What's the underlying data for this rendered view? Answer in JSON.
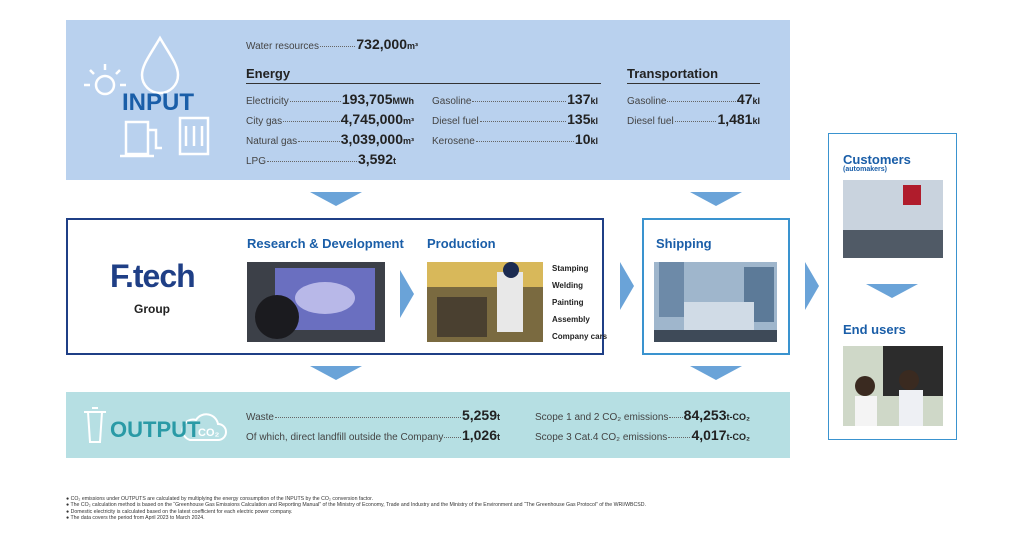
{
  "input": {
    "title": "INPUT",
    "water": {
      "label": "Water resources",
      "value": "732,000",
      "unit": "m³"
    },
    "energy": {
      "heading": "Energy",
      "items": [
        {
          "label": "Electricity",
          "value": "193,705",
          "unit": "MWh"
        },
        {
          "label": "City gas",
          "value": "4,745,000",
          "unit": "m³"
        },
        {
          "label": "Natural gas",
          "value": "3,039,000",
          "unit": "m³"
        },
        {
          "label": "LPG",
          "value": "3,592",
          "unit": "t"
        },
        {
          "label": "Gasoline",
          "value": "137",
          "unit": "kl"
        },
        {
          "label": "Diesel fuel",
          "value": "135",
          "unit": "kl"
        },
        {
          "label": "Kerosene",
          "value": "10",
          "unit": "kl"
        }
      ]
    },
    "transportation": {
      "heading": "Transportation",
      "items": [
        {
          "label": "Gasoline",
          "value": "47",
          "unit": "kl"
        },
        {
          "label": "Diesel fuel",
          "value": "1,481",
          "unit": "kl"
        }
      ]
    }
  },
  "flow": {
    "logo": "F.tech",
    "group": "Group",
    "rd": {
      "heading": "Research & Development"
    },
    "production": {
      "heading": "Production",
      "steps": [
        "Stamping",
        "Welding",
        "Painting",
        "Assembly",
        "Company cars"
      ]
    },
    "shipping": {
      "heading": "Shipping"
    }
  },
  "customers": {
    "heading": "Customers",
    "subheading": "(automakers)"
  },
  "end_users": {
    "heading": "End users"
  },
  "output": {
    "title": "OUTPUT",
    "cloud_label": "CO₂",
    "items": [
      {
        "label": "Waste",
        "value": "5,259",
        "unit": "t"
      },
      {
        "label": "Of which, direct landfill outside the Company",
        "value": "1,026",
        "unit": "t"
      },
      {
        "label": "Scope 1 and 2 CO₂ emissions",
        "value": "84,253",
        "unit": "t-CO₂"
      },
      {
        "label": "Scope 3 Cat.4 CO₂ emissions",
        "value": "4,017",
        "unit": "t-CO₂"
      }
    ]
  },
  "notes": [
    "CO₂ emissions under OUTPUTS are calculated by multiplying the energy consumption of the INPUTS by the CO₂ conversion factor.",
    "The CO₂ calculation method is based on the “Greenhouse Gas Emissions Calculation and Reporting Manual” of the Ministry of Economy, Trade and Industry and the Ministry of the Environment and “The Greenhouse Gas Protocol” of the WRI/WBCSD.",
    "Domestic electricity is calculated based on the latest coefficient for each electric power company.",
    "The data covers the period from April 2023 to March 2024."
  ]
}
